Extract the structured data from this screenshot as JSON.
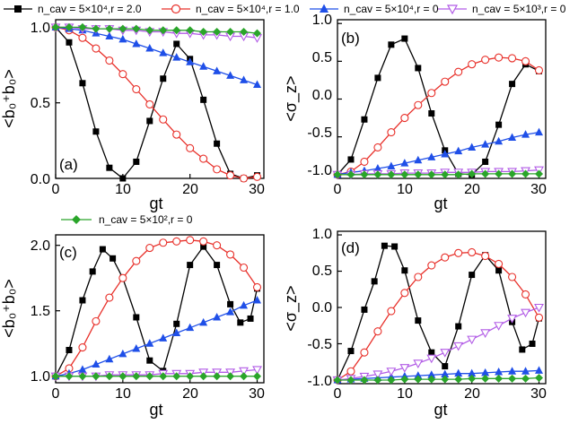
{
  "legend": [
    {
      "series": "s1",
      "label": "n_cav = 5×10⁴,r = 2.0"
    },
    {
      "series": "s2",
      "label": "n_cav = 5×10⁴,r = 1.0"
    },
    {
      "series": "s3",
      "label": "n_cav = 5×10⁴,r = 0"
    },
    {
      "series": "s4",
      "label": "n_cav = 5×10³,r = 0"
    },
    {
      "series": "s5",
      "label": "n_cav = 5×10²,r = 0"
    }
  ],
  "colors": {
    "s1": "#000000",
    "s2": "#e8302a",
    "s3": "#1f4fe8",
    "s4": "#b25ce6",
    "s5": "#2aa52a"
  },
  "chart_data": [
    {
      "type": "line",
      "panel": "(a)",
      "xlabel": "gt",
      "ylabel": "<b₀⁺b₀>",
      "xlim": [
        0,
        31
      ],
      "ylim": [
        0,
        1.05
      ],
      "xticks": [
        "0",
        "10",
        "20",
        "30"
      ],
      "yticks": [
        "0.0",
        "0.5",
        "1.0"
      ],
      "series": [
        {
          "key": "s1",
          "x": [
            0,
            2,
            4,
            6,
            8,
            10,
            12,
            14,
            16,
            18,
            20,
            22,
            24,
            26,
            28,
            30
          ],
          "values": [
            1.0,
            0.9,
            0.63,
            0.31,
            0.07,
            0.0,
            0.11,
            0.38,
            0.66,
            0.89,
            0.79,
            0.52,
            0.23,
            0.03,
            0.0,
            0.02
          ]
        },
        {
          "key": "s2",
          "x": [
            0,
            2,
            4,
            6,
            8,
            10,
            12,
            14,
            16,
            18,
            20,
            22,
            24,
            26,
            28,
            30
          ],
          "values": [
            1.0,
            0.98,
            0.93,
            0.86,
            0.78,
            0.69,
            0.59,
            0.49,
            0.39,
            0.29,
            0.2,
            0.13,
            0.06,
            0.02,
            0.0,
            0.01
          ]
        },
        {
          "key": "s3",
          "x": [
            0,
            2,
            4,
            6,
            8,
            10,
            12,
            14,
            16,
            18,
            20,
            22,
            24,
            26,
            28,
            30
          ],
          "values": [
            1.0,
            0.99,
            0.98,
            0.96,
            0.94,
            0.92,
            0.89,
            0.86,
            0.83,
            0.8,
            0.77,
            0.74,
            0.71,
            0.68,
            0.65,
            0.62
          ]
        },
        {
          "key": "s4",
          "x": [
            0,
            2,
            4,
            6,
            8,
            10,
            12,
            14,
            16,
            18,
            20,
            22,
            24,
            26,
            28,
            30
          ],
          "values": [
            1.0,
            1.0,
            0.99,
            0.99,
            0.99,
            0.98,
            0.98,
            0.97,
            0.97,
            0.96,
            0.96,
            0.95,
            0.95,
            0.94,
            0.94,
            0.93
          ]
        },
        {
          "key": "s5",
          "x": [
            0,
            2,
            4,
            6,
            8,
            10,
            12,
            14,
            16,
            18,
            20,
            22,
            24,
            26,
            28,
            30
          ],
          "values": [
            1.0,
            1.0,
            1.0,
            0.99,
            0.99,
            0.99,
            0.99,
            0.98,
            0.98,
            0.98,
            0.98,
            0.97,
            0.97,
            0.97,
            0.97,
            0.96
          ]
        }
      ]
    },
    {
      "type": "line",
      "panel": "(b)",
      "xlabel": "gt",
      "ylabel": "<σ_z>",
      "xlim": [
        0,
        31
      ],
      "ylim": [
        -1.05,
        1.05
      ],
      "xticks": [
        "0",
        "10",
        "20",
        "30"
      ],
      "yticks": [
        "-1.0",
        "-0.5",
        "0.0",
        "0.5",
        "1.0"
      ],
      "series": [
        {
          "key": "s1",
          "x": [
            0,
            2,
            4,
            6,
            8,
            10,
            12,
            14,
            16,
            18,
            20,
            22,
            24,
            26,
            28,
            30
          ],
          "values": [
            -1.0,
            -0.8,
            -0.27,
            0.28,
            0.72,
            0.8,
            0.41,
            -0.19,
            -0.68,
            -0.99,
            -1.0,
            -0.83,
            -0.34,
            0.2,
            0.46,
            0.37
          ]
        },
        {
          "key": "s2",
          "x": [
            0,
            2,
            4,
            6,
            8,
            10,
            12,
            14,
            16,
            18,
            20,
            22,
            24,
            26,
            28,
            30
          ],
          "values": [
            -1.0,
            -0.96,
            -0.83,
            -0.64,
            -0.44,
            -0.25,
            -0.08,
            0.08,
            0.23,
            0.36,
            0.46,
            0.52,
            0.55,
            0.54,
            0.5,
            0.38
          ]
        },
        {
          "key": "s3",
          "x": [
            0,
            2,
            4,
            6,
            8,
            10,
            12,
            14,
            16,
            18,
            20,
            22,
            24,
            26,
            28,
            30
          ],
          "values": [
            -1.0,
            -0.97,
            -0.95,
            -0.92,
            -0.89,
            -0.85,
            -0.81,
            -0.77,
            -0.73,
            -0.69,
            -0.64,
            -0.6,
            -0.56,
            -0.51,
            -0.47,
            -0.44
          ]
        },
        {
          "key": "s4",
          "x": [
            0,
            2,
            4,
            6,
            8,
            10,
            12,
            14,
            16,
            18,
            20,
            22,
            24,
            26,
            28,
            30
          ],
          "values": [
            -1.0,
            -1.0,
            -0.99,
            -0.99,
            -0.99,
            -0.98,
            -0.98,
            -0.98,
            -0.97,
            -0.97,
            -0.97,
            -0.96,
            -0.96,
            -0.96,
            -0.95,
            -0.94
          ]
        },
        {
          "key": "s5",
          "x": [
            0,
            2,
            4,
            6,
            8,
            10,
            12,
            14,
            16,
            18,
            20,
            22,
            24,
            26,
            28,
            30
          ],
          "values": [
            -1.0,
            -1.0,
            -1.0,
            -1.0,
            -1.0,
            -1.0,
            -1.0,
            -1.0,
            -1.0,
            -1.0,
            -0.99,
            -0.99,
            -0.99,
            -0.99,
            -0.99,
            -0.99
          ]
        }
      ]
    },
    {
      "type": "line",
      "panel": "(c)",
      "xlabel": "gt",
      "ylabel": "<b₀⁺b₀>",
      "xlim": [
        0,
        31
      ],
      "ylim": [
        0.95,
        2.08
      ],
      "xticks": [
        "0",
        "10",
        "20",
        "30"
      ],
      "yticks": [
        "1.0",
        "1.5",
        "2.0"
      ],
      "series": [
        {
          "key": "s1",
          "x": [
            0,
            2,
            4,
            5.5,
            7,
            8.5,
            10,
            12,
            14,
            16,
            18,
            20,
            22,
            24,
            26,
            27.5,
            29,
            30
          ],
          "values": [
            1.0,
            1.2,
            1.58,
            1.8,
            1.97,
            1.9,
            1.75,
            1.45,
            1.12,
            1.04,
            1.4,
            1.85,
            1.99,
            1.85,
            1.55,
            1.41,
            1.44,
            1.67
          ]
        },
        {
          "key": "s2",
          "x": [
            0,
            2,
            4,
            6,
            8,
            10,
            12,
            14,
            16,
            18,
            20,
            22,
            24,
            26,
            28,
            30
          ],
          "values": [
            1.0,
            1.06,
            1.22,
            1.42,
            1.6,
            1.75,
            1.88,
            1.98,
            2.02,
            2.03,
            2.04,
            2.03,
            2.0,
            1.93,
            1.83,
            1.68
          ]
        },
        {
          "key": "s3",
          "x": [
            0,
            2,
            4,
            6,
            8,
            10,
            12,
            14,
            16,
            18,
            20,
            22,
            24,
            26,
            28,
            30
          ],
          "values": [
            1.0,
            1.02,
            1.05,
            1.09,
            1.13,
            1.17,
            1.21,
            1.25,
            1.29,
            1.33,
            1.37,
            1.41,
            1.45,
            1.49,
            1.54,
            1.58
          ]
        },
        {
          "key": "s4",
          "x": [
            0,
            2,
            4,
            6,
            8,
            10,
            12,
            14,
            16,
            18,
            20,
            22,
            24,
            26,
            28,
            30
          ],
          "values": [
            1.0,
            1.0,
            1.0,
            1.0,
            1.01,
            1.01,
            1.01,
            1.01,
            1.02,
            1.02,
            1.02,
            1.03,
            1.03,
            1.03,
            1.04,
            1.05
          ]
        },
        {
          "key": "s5",
          "x": [
            0,
            2,
            4,
            6,
            8,
            10,
            12,
            14,
            16,
            18,
            20,
            22,
            24,
            26,
            28,
            30
          ],
          "values": [
            1.0,
            1.0,
            1.0,
            1.0,
            1.0,
            1.0,
            1.0,
            1.0,
            1.0,
            1.0,
            1.0,
            1.0,
            1.0,
            1.0,
            1.0,
            1.0
          ]
        }
      ]
    },
    {
      "type": "line",
      "panel": "(d)",
      "xlabel": "gt",
      "ylabel": "<σ_z>",
      "xlim": [
        0,
        31
      ],
      "ylim": [
        -1.05,
        1.05
      ],
      "xticks": [
        "0",
        "10",
        "20",
        "30"
      ],
      "yticks": [
        "-1.0",
        "-0.5",
        "0.0",
        "0.5",
        "1.0"
      ],
      "series": [
        {
          "key": "s1",
          "x": [
            0,
            2,
            4,
            5.5,
            7,
            8.5,
            10,
            12,
            14,
            16,
            18,
            20,
            22,
            24,
            26,
            27.5,
            29,
            30
          ],
          "values": [
            -1.0,
            -0.6,
            -0.03,
            0.36,
            0.85,
            0.84,
            0.51,
            -0.18,
            -0.62,
            -0.81,
            -0.26,
            0.45,
            0.72,
            0.51,
            -0.2,
            -0.58,
            -0.5,
            -0.15
          ]
        },
        {
          "key": "s2",
          "x": [
            0,
            2,
            4,
            6,
            8,
            10,
            12,
            14,
            16,
            18,
            20,
            22,
            24,
            26,
            28,
            30
          ],
          "values": [
            -1.0,
            -0.88,
            -0.62,
            -0.33,
            -0.05,
            0.2,
            0.42,
            0.58,
            0.69,
            0.75,
            0.76,
            0.71,
            0.6,
            0.42,
            0.18,
            -0.14
          ]
        },
        {
          "key": "s3",
          "x": [
            0,
            2,
            4,
            6,
            8,
            10,
            12,
            14,
            16,
            18,
            20,
            22,
            24,
            26,
            28,
            30
          ],
          "values": [
            -1.0,
            -0.99,
            -0.98,
            -0.97,
            -0.96,
            -0.95,
            -0.94,
            -0.93,
            -0.92,
            -0.91,
            -0.91,
            -0.9,
            -0.89,
            -0.88,
            -0.88,
            -0.87
          ]
        },
        {
          "key": "s4",
          "x": [
            0,
            2,
            4,
            6,
            8,
            10,
            12,
            14,
            16,
            18,
            20,
            22,
            24,
            26,
            28,
            30
          ],
          "values": [
            -1.0,
            -0.98,
            -0.95,
            -0.92,
            -0.88,
            -0.83,
            -0.77,
            -0.7,
            -0.62,
            -0.53,
            -0.44,
            -0.35,
            -0.25,
            -0.15,
            -0.07,
            0.0
          ]
        },
        {
          "key": "s5",
          "x": [
            0,
            2,
            4,
            6,
            8,
            10,
            12,
            14,
            16,
            18,
            20,
            22,
            24,
            26,
            28,
            30
          ],
          "values": [
            -1.0,
            -1.0,
            -1.0,
            -1.0,
            -1.0,
            -0.99,
            -0.99,
            -0.99,
            -0.99,
            -0.99,
            -0.98,
            -0.98,
            -0.98,
            -0.98,
            -0.98,
            -0.97
          ]
        }
      ]
    }
  ]
}
